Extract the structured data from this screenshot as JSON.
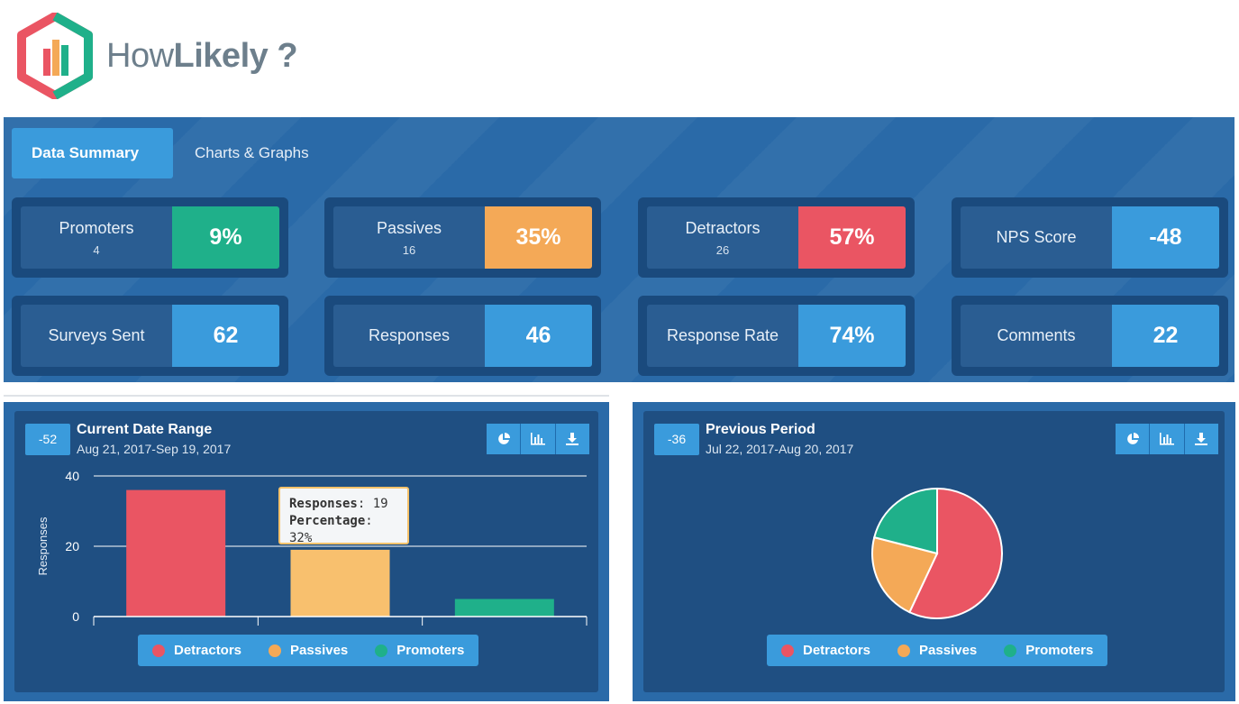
{
  "brand": {
    "how": "How",
    "likely": "Likely",
    "q": "?"
  },
  "tabs": [
    {
      "label": "Data Summary",
      "active": true
    },
    {
      "label": "Charts & Graphs",
      "active": false
    }
  ],
  "stats": [
    {
      "label": "Promoters",
      "sub": "4",
      "value": "9%",
      "color": "#1fb08a"
    },
    {
      "label": "Passives",
      "sub": "16",
      "value": "35%",
      "color": "#f4a957"
    },
    {
      "label": "Detractors",
      "sub": "26",
      "value": "57%",
      "color": "#ea5563"
    },
    {
      "label": "NPS Score",
      "sub": "",
      "value": "-48",
      "color": "#3a9bdc"
    },
    {
      "label": "Surveys Sent",
      "sub": "",
      "value": "62",
      "color": "#3a9bdc"
    },
    {
      "label": "Responses",
      "sub": "",
      "value": "46",
      "color": "#3a9bdc"
    },
    {
      "label": "Response Rate",
      "sub": "",
      "value": "74%",
      "color": "#3a9bdc"
    },
    {
      "label": "Comments",
      "sub": "",
      "value": "22",
      "color": "#3a9bdc"
    }
  ],
  "current": {
    "badge": "-52",
    "title": "Current Date Range",
    "date": "Aug 21, 2017-Sep 19, 2017",
    "tooltip": {
      "k1": "Responses",
      "v1": "19",
      "k2": "Percentage",
      "v2": "32%"
    }
  },
  "previous": {
    "badge": "-36",
    "title": "Previous Period",
    "date": "Jul 22, 2017-Aug 20, 2017"
  },
  "legend": [
    {
      "label": "Detractors",
      "color": "#ea5563"
    },
    {
      "label": "Passives",
      "color": "#f4a957"
    },
    {
      "label": "Promoters",
      "color": "#1fb08a"
    }
  ],
  "chart_data": [
    {
      "type": "bar",
      "categories": [
        "Detractors",
        "Passives",
        "Promoters"
      ],
      "values": [
        36,
        19,
        5
      ],
      "colors": [
        "#ea5563",
        "#f8c06e",
        "#1fb08a"
      ],
      "ylabel": "Responses",
      "yticks": [
        "0",
        "20",
        "40"
      ],
      "ylim": [
        0,
        40
      ],
      "grid": true,
      "legend": "bottom"
    },
    {
      "type": "pie",
      "categories": [
        "Detractors",
        "Passives",
        "Promoters"
      ],
      "values": [
        57,
        22,
        21
      ],
      "colors": [
        "#ea5563",
        "#f4a957",
        "#1fb08a"
      ],
      "legend": "bottom"
    }
  ]
}
